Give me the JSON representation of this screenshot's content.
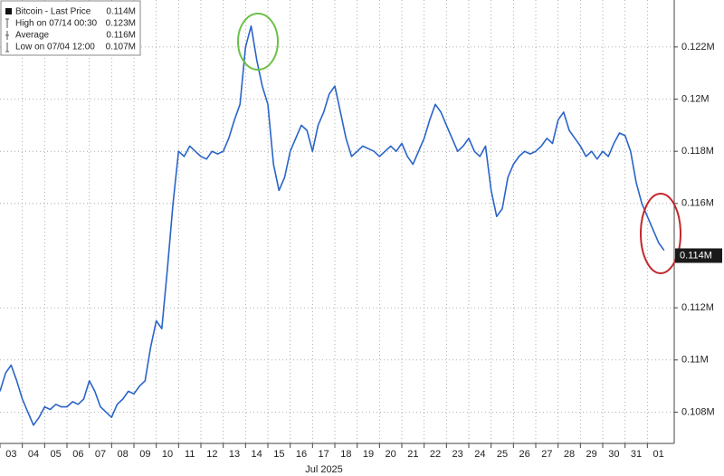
{
  "chart_data": {
    "type": "line",
    "x_axis_label": "Jul 2025",
    "day_labels": [
      "03",
      "04",
      "05",
      "06",
      "07",
      "08",
      "09",
      "10",
      "11",
      "12",
      "13",
      "14",
      "15",
      "16",
      "17",
      "18",
      "19",
      "20",
      "21",
      "22",
      "23",
      "24",
      "25",
      "26",
      "27",
      "28",
      "29",
      "30",
      "31",
      "01"
    ],
    "x": [
      "07/03 00:00",
      "07/03 06:00",
      "07/03 12:00",
      "07/03 18:00",
      "07/04 00:00",
      "07/04 06:00",
      "07/04 12:00",
      "07/04 18:00",
      "07/05 00:00",
      "07/05 06:00",
      "07/05 12:00",
      "07/05 18:00",
      "07/06 00:00",
      "07/06 06:00",
      "07/06 12:00",
      "07/06 18:00",
      "07/07 00:00",
      "07/07 06:00",
      "07/07 12:00",
      "07/07 18:00",
      "07/08 00:00",
      "07/08 06:00",
      "07/08 12:00",
      "07/08 18:00",
      "07/09 00:00",
      "07/09 06:00",
      "07/09 12:00",
      "07/09 18:00",
      "07/10 00:00",
      "07/10 06:00",
      "07/10 12:00",
      "07/10 18:00",
      "07/11 00:00",
      "07/11 06:00",
      "07/11 12:00",
      "07/11 18:00",
      "07/12 00:00",
      "07/12 06:00",
      "07/12 12:00",
      "07/12 18:00",
      "07/13 00:00",
      "07/13 06:00",
      "07/13 12:00",
      "07/13 18:00",
      "07/14 00:00",
      "07/14 06:00",
      "07/14 12:00",
      "07/14 18:00",
      "07/15 00:00",
      "07/15 06:00",
      "07/15 12:00",
      "07/15 18:00",
      "07/16 00:00",
      "07/16 06:00",
      "07/16 12:00",
      "07/16 18:00",
      "07/17 00:00",
      "07/17 06:00",
      "07/17 12:00",
      "07/17 18:00",
      "07/18 00:00",
      "07/18 06:00",
      "07/18 12:00",
      "07/18 18:00",
      "07/19 00:00",
      "07/19 06:00",
      "07/19 12:00",
      "07/19 18:00",
      "07/20 00:00",
      "07/20 06:00",
      "07/20 12:00",
      "07/20 18:00",
      "07/21 00:00",
      "07/21 06:00",
      "07/21 12:00",
      "07/21 18:00",
      "07/22 00:00",
      "07/22 06:00",
      "07/22 12:00",
      "07/22 18:00",
      "07/23 00:00",
      "07/23 06:00",
      "07/23 12:00",
      "07/23 18:00",
      "07/24 00:00",
      "07/24 06:00",
      "07/24 12:00",
      "07/24 18:00",
      "07/25 00:00",
      "07/25 06:00",
      "07/25 12:00",
      "07/25 18:00",
      "07/26 00:00",
      "07/26 06:00",
      "07/26 12:00",
      "07/26 18:00",
      "07/27 00:00",
      "07/27 06:00",
      "07/27 12:00",
      "07/27 18:00",
      "07/28 00:00",
      "07/28 06:00",
      "07/28 12:00",
      "07/28 18:00",
      "07/29 00:00",
      "07/29 06:00",
      "07/29 12:00",
      "07/29 18:00",
      "07/30 00:00",
      "07/30 06:00",
      "07/30 12:00",
      "07/30 18:00",
      "07/31 00:00",
      "07/31 06:00",
      "07/31 12:00",
      "07/31 18:00",
      "08/01 00:00",
      "08/01 06:00",
      "08/01 12:00",
      "08/01 18:00"
    ],
    "series": [
      {
        "name": "Bitcoin",
        "color": "#2a64c8",
        "values": [
          0.1088,
          0.1095,
          0.1098,
          0.1092,
          0.1085,
          0.108,
          0.1075,
          0.1078,
          0.1082,
          0.1081,
          0.1083,
          0.1082,
          0.1082,
          0.1084,
          0.1083,
          0.1085,
          0.1092,
          0.1088,
          0.1082,
          0.108,
          0.1078,
          0.1083,
          0.1085,
          0.1088,
          0.1087,
          0.109,
          0.1092,
          0.1105,
          0.1115,
          0.1112,
          0.1135,
          0.116,
          0.118,
          0.1178,
          0.1182,
          0.118,
          0.1178,
          0.1177,
          0.118,
          0.1179,
          0.118,
          0.1185,
          0.1192,
          0.1198,
          0.122,
          0.1228,
          0.1215,
          0.1205,
          0.1198,
          0.1175,
          0.1165,
          0.117,
          0.118,
          0.1185,
          0.119,
          0.1188,
          0.118,
          0.119,
          0.1195,
          0.1202,
          0.1205,
          0.1195,
          0.1185,
          0.1178,
          0.118,
          0.1182,
          0.1181,
          0.118,
          0.1178,
          0.118,
          0.1182,
          0.118,
          0.1183,
          0.1178,
          0.1175,
          0.118,
          0.1185,
          0.1192,
          0.1198,
          0.1195,
          0.119,
          0.1185,
          0.118,
          0.1182,
          0.1185,
          0.118,
          0.1178,
          0.1182,
          0.1165,
          0.1155,
          0.1158,
          0.117,
          0.1175,
          0.1178,
          0.118,
          0.1179,
          0.118,
          0.1182,
          0.1185,
          0.1183,
          0.1192,
          0.1195,
          0.1188,
          0.1185,
          0.1182,
          0.1178,
          0.118,
          0.1177,
          0.118,
          0.1178,
          0.1183,
          0.1187,
          0.1186,
          0.118,
          0.1168,
          0.116,
          0.1155,
          0.115,
          0.1145,
          0.1142
        ]
      }
    ],
    "ylim": [
      0.1068,
      0.1238
    ],
    "yticks": [
      {
        "value": 0.108,
        "label": "0.108M"
      },
      {
        "value": 0.11,
        "label": "0.11M"
      },
      {
        "value": 0.112,
        "label": "0.112M"
      },
      {
        "value": 0.116,
        "label": "0.116M"
      },
      {
        "value": 0.118,
        "label": "0.118M"
      },
      {
        "value": 0.12,
        "label": "0.12M"
      },
      {
        "value": 0.122,
        "label": "0.122M"
      }
    ],
    "last_price": {
      "value": 0.114,
      "label": "0.114M"
    },
    "legend": [
      {
        "label": "Bitcoin - Last Price",
        "value": 0.114,
        "value_label": "0.114M"
      },
      {
        "label": "High on 07/14 00:30",
        "value": 0.123,
        "value_label": "0.123M"
      },
      {
        "label": "Average",
        "value": 0.116,
        "value_label": "0.116M"
      },
      {
        "label": "Low on 07/04 12:00",
        "value": 0.107,
        "value_label": "0.107M"
      }
    ],
    "grid": true
  }
}
